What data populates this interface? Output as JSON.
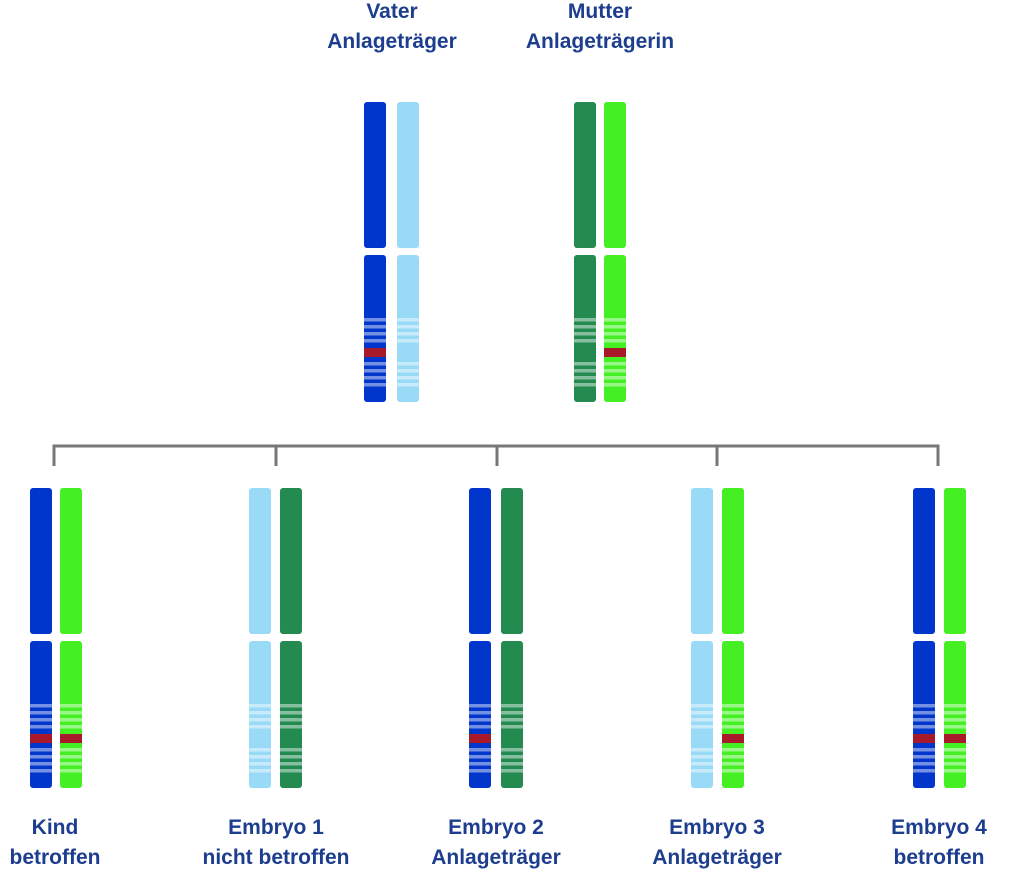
{
  "colors": {
    "paternal_a": "#0036cc",
    "paternal_b": "#99dbf7",
    "maternal_a": "#238a50",
    "maternal_b": "#44f024",
    "mutation": "#a81a2a",
    "connector": "#777777",
    "label": "#1d3d8f"
  },
  "parents": [
    {
      "line1": "Vater",
      "line2": "Anlageträger",
      "chromosomes": [
        {
          "color": "paternal_a",
          "mutation": true
        },
        {
          "color": "paternal_b",
          "mutation": false
        }
      ]
    },
    {
      "line1": "Mutter",
      "line2": "Anlageträgerin",
      "chromosomes": [
        {
          "color": "maternal_a",
          "mutation": false
        },
        {
          "color": "maternal_b",
          "mutation": true
        }
      ]
    }
  ],
  "children": [
    {
      "line1": "Kind",
      "line2": "betroffen",
      "chromosomes": [
        {
          "color": "paternal_a",
          "mutation": true
        },
        {
          "color": "maternal_b",
          "mutation": true
        }
      ]
    },
    {
      "line1": "Embryo 1",
      "line2": "nicht betroffen",
      "chromosomes": [
        {
          "color": "paternal_b",
          "mutation": false
        },
        {
          "color": "maternal_a",
          "mutation": false
        }
      ]
    },
    {
      "line1": "Embryo 2",
      "line2": "Anlageträger",
      "chromosomes": [
        {
          "color": "paternal_a",
          "mutation": true
        },
        {
          "color": "maternal_a",
          "mutation": false
        }
      ]
    },
    {
      "line1": "Embryo 3",
      "line2": "Anlageträger",
      "chromosomes": [
        {
          "color": "paternal_b",
          "mutation": false
        },
        {
          "color": "maternal_b",
          "mutation": true
        }
      ]
    },
    {
      "line1": "Embryo 4",
      "line2": "betroffen",
      "chromosomes": [
        {
          "color": "paternal_a",
          "mutation": true
        },
        {
          "color": "maternal_b",
          "mutation": true
        }
      ]
    }
  ]
}
